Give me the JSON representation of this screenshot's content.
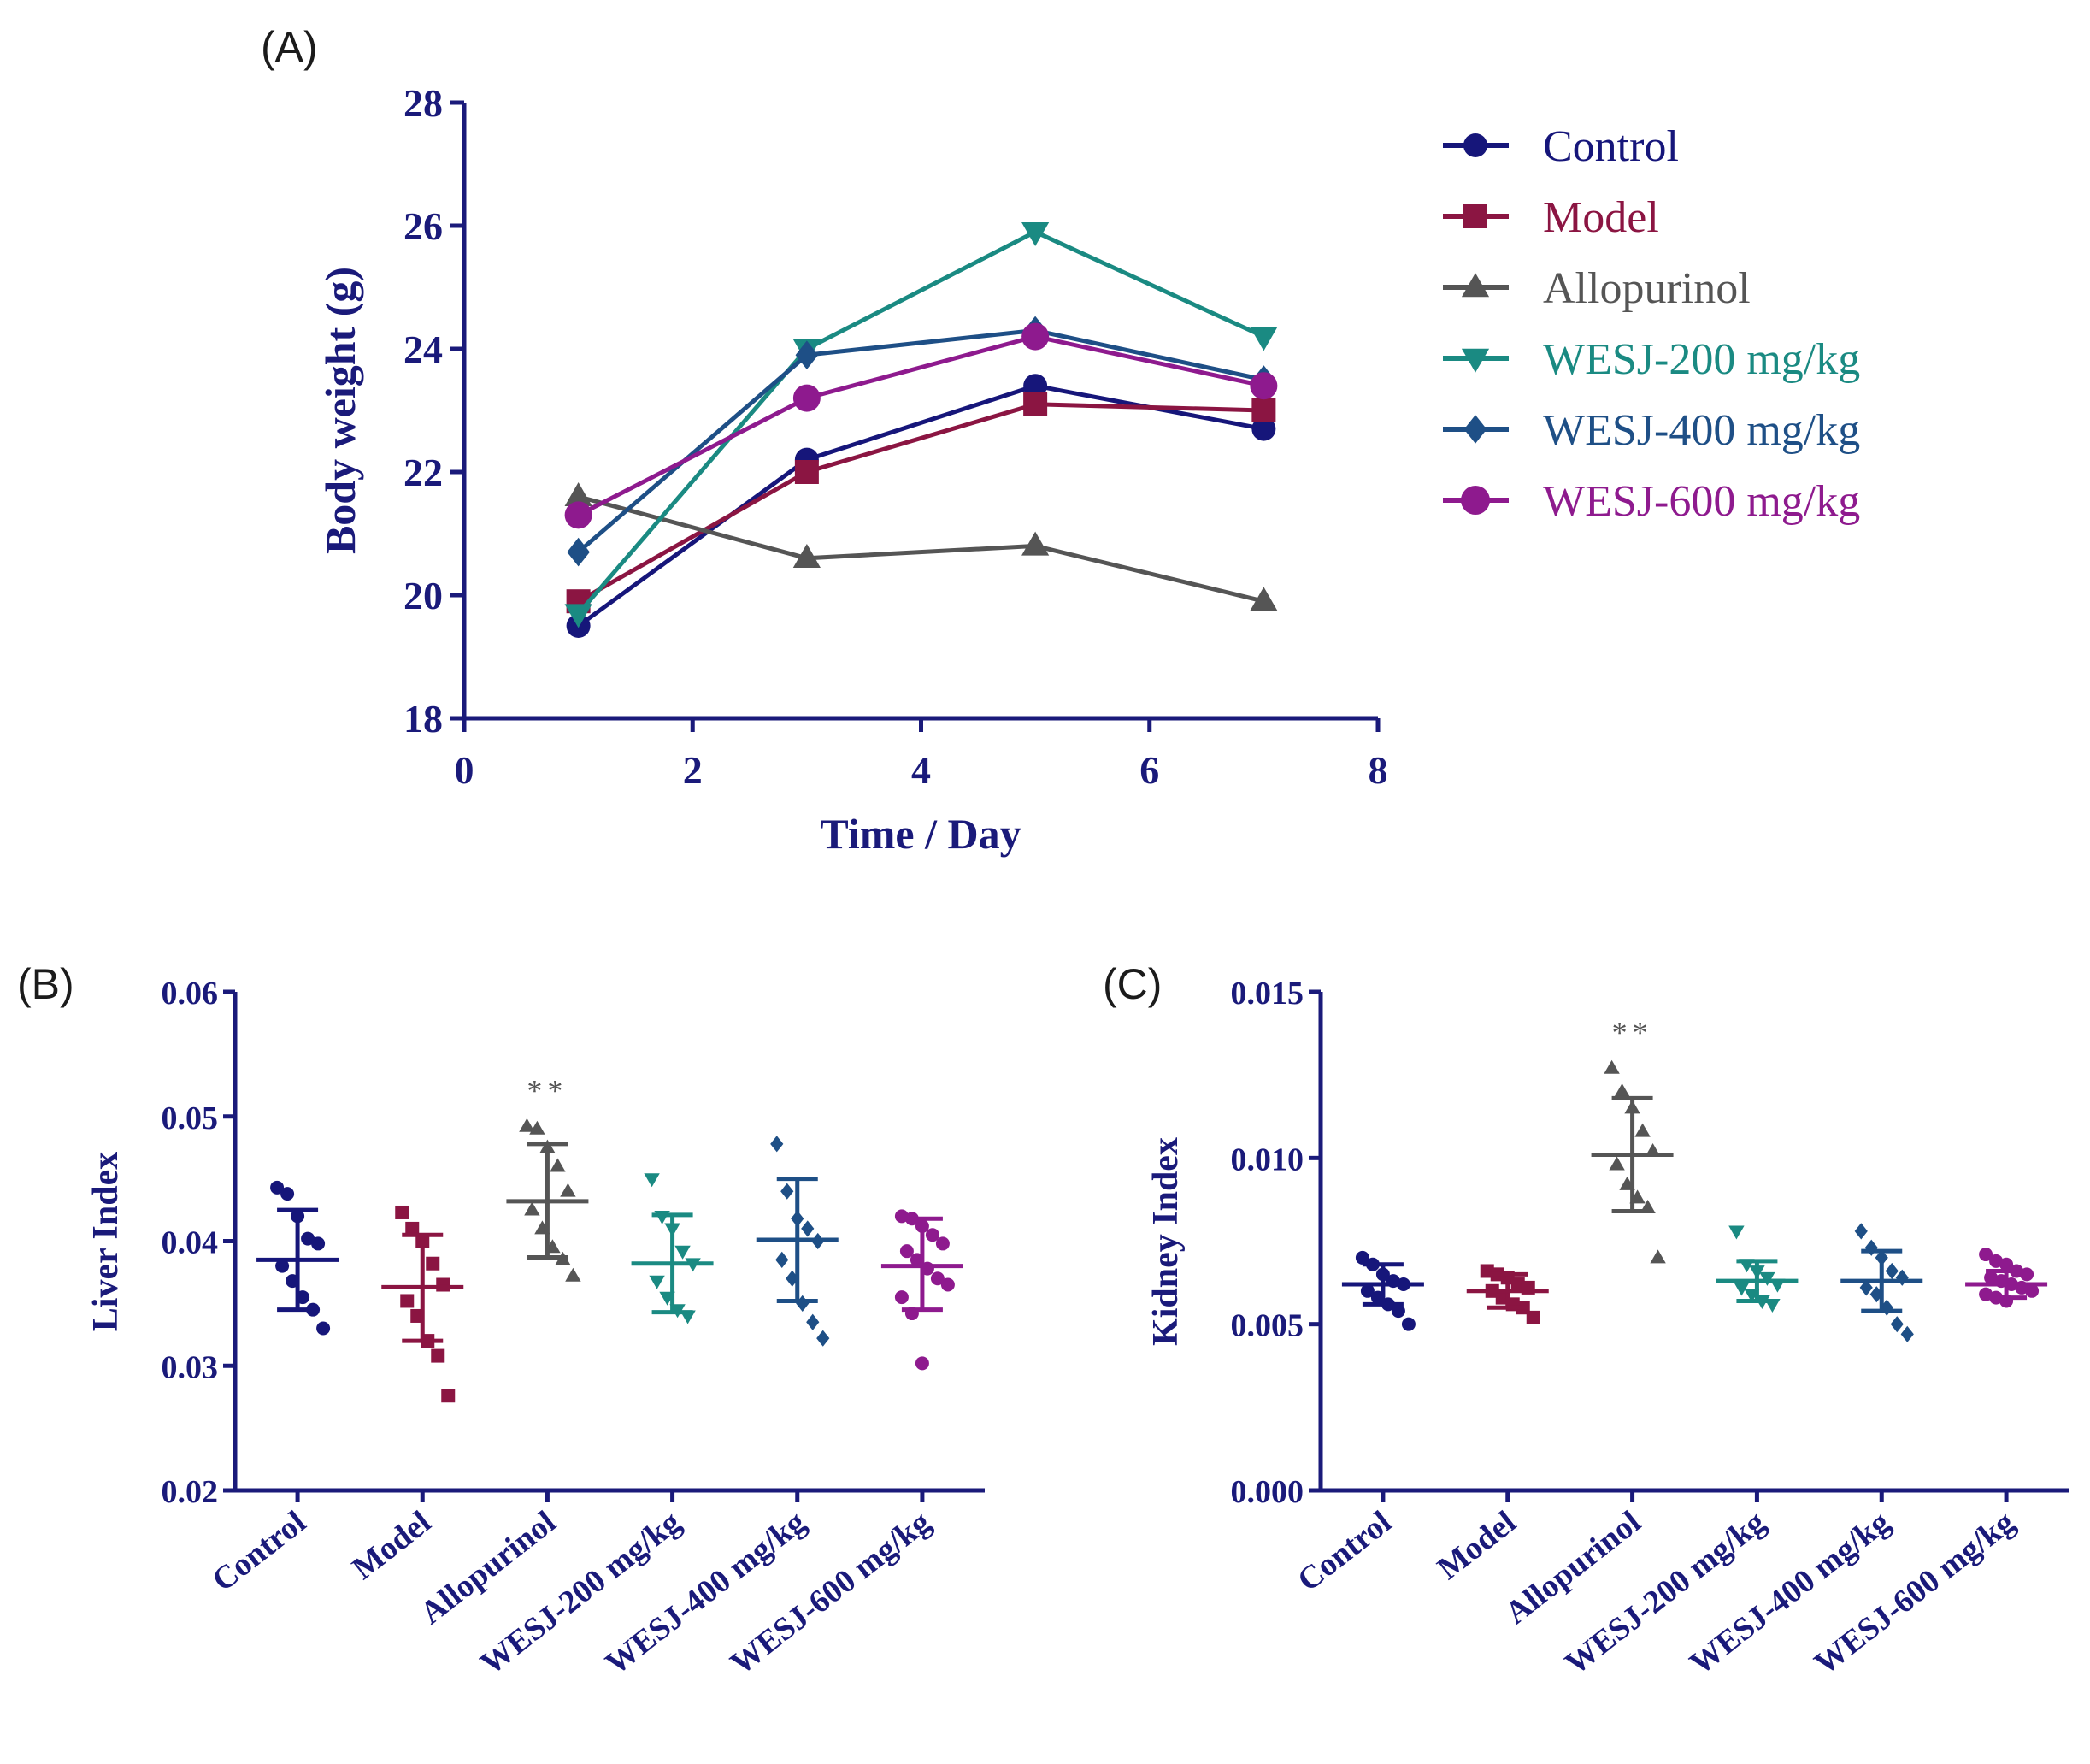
{
  "chart_data": [
    {
      "panel": "(A)",
      "type": "line",
      "xlabel": "Time / Day",
      "ylabel": "Body weight (g)",
      "xlim": [
        0,
        8
      ],
      "ylim": [
        18,
        28
      ],
      "xticks": [
        0,
        2,
        4,
        6,
        8
      ],
      "yticks": [
        18,
        20,
        22,
        24,
        26,
        28
      ],
      "x": [
        1,
        3,
        5,
        7
      ],
      "legend_position": "right",
      "series": [
        {
          "name": "Control",
          "color": "#16167a",
          "marker": "circle",
          "values": [
            19.5,
            22.2,
            23.4,
            22.7
          ]
        },
        {
          "name": "Model",
          "color": "#8b1542",
          "marker": "square",
          "values": [
            19.9,
            22.0,
            23.1,
            23.0
          ]
        },
        {
          "name": "Allopurinol",
          "color": "#555555",
          "marker": "triangle-up",
          "values": [
            21.6,
            20.6,
            20.8,
            19.9
          ]
        },
        {
          "name": "WESJ-200 mg/kg",
          "color": "#1a8a82",
          "marker": "triangle-down",
          "values": [
            19.7,
            24.0,
            25.9,
            24.2
          ]
        },
        {
          "name": "WESJ-400 mg/kg",
          "color": "#1e4f86",
          "marker": "diamond",
          "values": [
            20.7,
            23.9,
            24.3,
            23.5
          ]
        },
        {
          "name": "WESJ-600 mg/kg",
          "color": "#8e1a8e",
          "marker": "circle",
          "values": [
            21.3,
            23.2,
            24.2,
            23.4
          ]
        }
      ]
    },
    {
      "panel": "(B)",
      "type": "scatter",
      "ylabel": "Liver Index",
      "ylim": [
        0.02,
        0.06
      ],
      "yticks": [
        "0.02",
        "0.03",
        "0.04",
        "0.05",
        "0.06"
      ],
      "categories": [
        "Control",
        "Model",
        "Allopurinol",
        "WESJ-200 mg/kg",
        "WESJ-400 mg/kg",
        "WESJ-600 mg/kg"
      ],
      "annotations": [
        {
          "category": "Allopurinol",
          "text": "**"
        }
      ],
      "groups": [
        {
          "name": "Control",
          "color": "#16167a",
          "marker": "circle",
          "mean": 0.0385,
          "sd_low": 0.0345,
          "sd_high": 0.0425,
          "points": [
            0.0443,
            0.0438,
            0.042,
            0.0402,
            0.0398,
            0.038,
            0.0368,
            0.0355,
            0.0345,
            0.033
          ]
        },
        {
          "name": "Model",
          "color": "#8b1542",
          "marker": "square",
          "mean": 0.0363,
          "sd_low": 0.032,
          "sd_high": 0.0405,
          "points": [
            0.0423,
            0.041,
            0.04,
            0.0382,
            0.0365,
            0.0352,
            0.034,
            0.032,
            0.0308,
            0.0276
          ]
        },
        {
          "name": "Allopurinol",
          "color": "#555555",
          "marker": "triangle-up",
          "mean": 0.0432,
          "sd_low": 0.0387,
          "sd_high": 0.0478,
          "points": [
            0.0492,
            0.049,
            0.0475,
            0.046,
            0.044,
            0.0425,
            0.041,
            0.0395,
            0.0385,
            0.0372
          ]
        },
        {
          "name": "WESJ-200 mg/kg",
          "color": "#1a8a82",
          "marker": "triangle-down",
          "mean": 0.0382,
          "sd_low": 0.0343,
          "sd_high": 0.0421,
          "points": [
            0.045,
            0.042,
            0.041,
            0.0392,
            0.0382,
            0.0368,
            0.0355,
            0.0345,
            0.034
          ]
        },
        {
          "name": "WESJ-400 mg/kg",
          "color": "#1e4f86",
          "marker": "diamond",
          "mean": 0.0401,
          "sd_low": 0.0352,
          "sd_high": 0.045,
          "points": [
            0.0478,
            0.044,
            0.0418,
            0.041,
            0.04,
            0.0385,
            0.037,
            0.035,
            0.0335,
            0.0322
          ]
        },
        {
          "name": "WESJ-600 mg/kg",
          "color": "#8e1a8e",
          "marker": "circle",
          "mean": 0.038,
          "sd_low": 0.0345,
          "sd_high": 0.0418,
          "points": [
            0.042,
            0.0418,
            0.0412,
            0.0405,
            0.0398,
            0.0392,
            0.0385,
            0.0378,
            0.037,
            0.0365,
            0.0355,
            0.0342,
            0.0302
          ]
        }
      ]
    },
    {
      "panel": "(C)",
      "type": "scatter",
      "ylabel": "Kidney Index",
      "ylim": [
        0,
        0.015
      ],
      "yticks": [
        "0.000",
        "0.005",
        "0.010",
        "0.015"
      ],
      "categories": [
        "Control",
        "Model",
        "Allopurinol",
        "WESJ-200 mg/kg",
        "WESJ-400 mg/kg",
        "WESJ-600 mg/kg"
      ],
      "annotations": [
        {
          "category": "Allopurinol",
          "text": "**"
        }
      ],
      "groups": [
        {
          "name": "Control",
          "color": "#16167a",
          "marker": "circle",
          "mean": 0.0062,
          "sd_low": 0.0056,
          "sd_high": 0.0068,
          "points": [
            0.007,
            0.0068,
            0.0065,
            0.0063,
            0.0062,
            0.006,
            0.0058,
            0.0056,
            0.0054,
            0.005
          ]
        },
        {
          "name": "Model",
          "color": "#8b1542",
          "marker": "square",
          "mean": 0.006,
          "sd_low": 0.0055,
          "sd_high": 0.0065,
          "points": [
            0.0066,
            0.0065,
            0.0064,
            0.0062,
            0.0061,
            0.006,
            0.0058,
            0.0056,
            0.0055,
            0.0052
          ]
        },
        {
          "name": "Allopurinol",
          "color": "#555555",
          "marker": "triangle-up",
          "mean": 0.0101,
          "sd_low": 0.0084,
          "sd_high": 0.0118,
          "points": [
            0.0127,
            0.012,
            0.0115,
            0.0108,
            0.0102,
            0.0098,
            0.0092,
            0.0088,
            0.0085,
            0.007
          ]
        },
        {
          "name": "WESJ-200 mg/kg",
          "color": "#1a8a82",
          "marker": "triangle-down",
          "mean": 0.0063,
          "sd_low": 0.0057,
          "sd_high": 0.0069,
          "points": [
            0.0078,
            0.0068,
            0.0066,
            0.0064,
            0.0062,
            0.0061,
            0.0059,
            0.0057,
            0.0056
          ]
        },
        {
          "name": "WESJ-400 mg/kg",
          "color": "#1e4f86",
          "marker": "diamond",
          "mean": 0.0063,
          "sd_low": 0.0054,
          "sd_high": 0.0072,
          "points": [
            0.0078,
            0.0073,
            0.007,
            0.0066,
            0.0064,
            0.0061,
            0.0059,
            0.0055,
            0.005,
            0.0047
          ]
        },
        {
          "name": "WESJ-600 mg/kg",
          "color": "#8e1a8e",
          "marker": "circle",
          "mean": 0.0062,
          "sd_low": 0.0058,
          "sd_high": 0.0066,
          "points": [
            0.0071,
            0.0069,
            0.0068,
            0.0066,
            0.0065,
            0.0064,
            0.0063,
            0.0062,
            0.0061,
            0.006,
            0.0059,
            0.0058,
            0.0057
          ]
        }
      ]
    }
  ]
}
